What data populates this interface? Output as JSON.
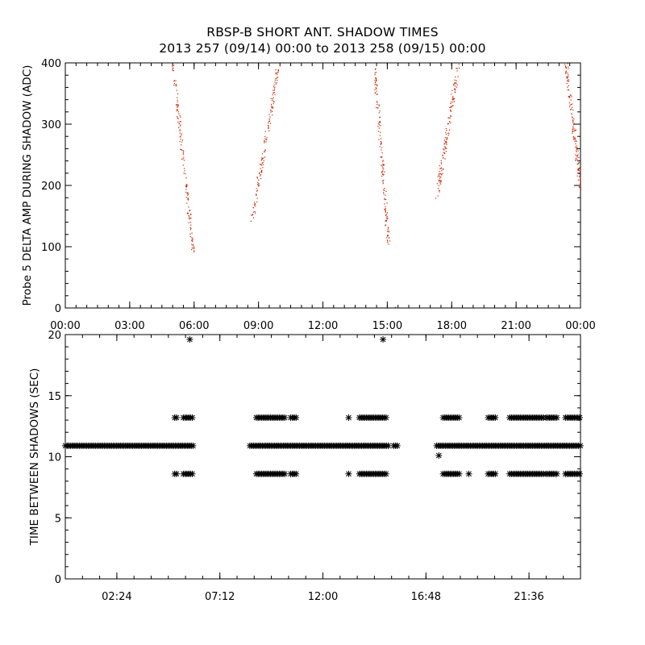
{
  "title": "RBSP-B SHORT ANT. SHADOW TIMES",
  "subtitle": "2013 257 (09/14) 00:00 to 2013 258 (09/15) 00:00",
  "chart_data": [
    {
      "type": "scatter",
      "ylabel": "Probe 5 DELTA AMP DURING SHADOW (ADC)",
      "xlabel": "",
      "x_units": "hours",
      "xlim": [
        0,
        24
      ],
      "ylim": [
        0,
        400
      ],
      "xticks": [
        0,
        3,
        6,
        9,
        12,
        15,
        18,
        21,
        24
      ],
      "xtick_labels": [
        "00:00",
        "03:00",
        "06:00",
        "09:00",
        "12:00",
        "15:00",
        "18:00",
        "21:00",
        "00:00"
      ],
      "yticks": [
        0,
        100,
        200,
        300,
        400
      ],
      "ytick_labels": [
        "0",
        "100",
        "200",
        "300",
        "400"
      ],
      "marker_color": "#cc2200",
      "grid": false,
      "series": [
        {
          "segments": [
            {
              "x_start": 5.0,
              "y_start": 400,
              "x_end": 5.95,
              "y_end": 90
            },
            {
              "x_start": 8.7,
              "y_start": 150,
              "x_end": 9.95,
              "y_end": 400
            },
            {
              "x_start": 14.4,
              "y_start": 390,
              "x_end": 15.05,
              "y_end": 100
            },
            {
              "x_start": 17.3,
              "y_start": 185,
              "x_end": 18.3,
              "y_end": 400
            },
            {
              "x_start": 23.3,
              "y_start": 400,
              "x_end": 24.0,
              "y_end": 195
            }
          ],
          "isolated_points": [
            {
              "x": 15.35,
              "y": 2
            }
          ]
        }
      ]
    },
    {
      "type": "scatter",
      "ylabel": "TIME BETWEEN SHADOWS (SEC)",
      "xlabel": "",
      "x_units": "hours",
      "xlim": [
        0,
        24
      ],
      "ylim": [
        0,
        20
      ],
      "xticks": [
        2.4,
        7.2,
        12.0,
        16.8,
        21.6
      ],
      "xtick_labels": [
        "02:24",
        "07:12",
        "12:00",
        "16:48",
        "21:36"
      ],
      "yticks": [
        0,
        5,
        10,
        15,
        20
      ],
      "ytick_labels": [
        "0",
        "5",
        "10",
        "15",
        "20"
      ],
      "marker": "*",
      "marker_color": "#000000",
      "grid": false,
      "series": [
        {
          "levels": [
            {
              "y": 10.9,
              "ranges": [
                [
                  0.0,
                  6.0
                ],
                [
                  8.6,
                  15.1
                ],
                [
                  15.3,
                  15.5
                ],
                [
                  17.3,
                  24.0
                ]
              ]
            },
            {
              "y": 13.2,
              "ranges": [
                [
                  5.1,
                  5.2
                ],
                [
                  5.5,
                  5.95
                ],
                [
                  8.9,
                  10.3
                ],
                [
                  10.5,
                  10.8
                ],
                [
                  13.2,
                  13.25
                ],
                [
                  13.7,
                  14.95
                ],
                [
                  17.6,
                  18.4
                ],
                [
                  19.7,
                  20.05
                ],
                [
                  20.7,
                  22.3
                ],
                [
                  22.4,
                  22.9
                ],
                [
                  23.3,
                  24.0
                ]
              ]
            },
            {
              "y": 8.6,
              "ranges": [
                [
                  5.1,
                  5.2
                ],
                [
                  5.5,
                  5.95
                ],
                [
                  8.9,
                  10.3
                ],
                [
                  10.5,
                  10.8
                ],
                [
                  13.2,
                  13.25
                ],
                [
                  13.7,
                  14.95
                ],
                [
                  17.6,
                  18.4
                ],
                [
                  18.8,
                  18.85
                ],
                [
                  19.7,
                  20.05
                ],
                [
                  20.7,
                  22.3
                ],
                [
                  22.4,
                  22.9
                ],
                [
                  23.3,
                  24.0
                ]
              ]
            }
          ],
          "isolated_points": [
            {
              "x": 5.8,
              "y": 19.6
            },
            {
              "x": 14.8,
              "y": 19.6
            },
            {
              "x": 17.4,
              "y": 10.1
            }
          ]
        }
      ]
    }
  ]
}
